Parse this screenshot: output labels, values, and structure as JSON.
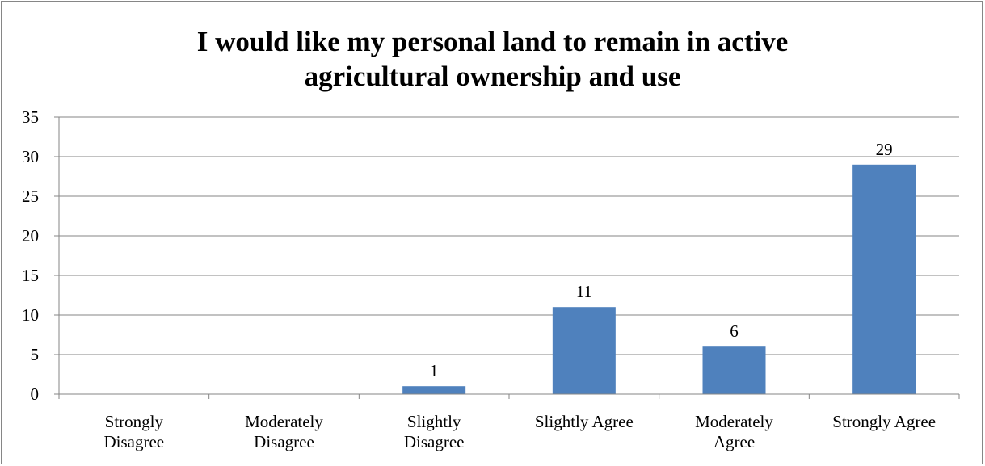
{
  "chart_data": {
    "type": "bar",
    "title": "I would like my personal land to remain in active\nagricultural ownership and use",
    "categories": [
      [
        "Strongly",
        "Disagree"
      ],
      [
        "Moderately",
        "Disagree"
      ],
      [
        "Slightly",
        "Disagree"
      ],
      [
        "Slightly Agree"
      ],
      [
        "Moderately",
        "Agree"
      ],
      [
        "Strongly Agree"
      ]
    ],
    "values": [
      0,
      0,
      1,
      11,
      6,
      29
    ],
    "data_labels": [
      "",
      "",
      "1",
      "11",
      "6",
      "29"
    ],
    "y_ticks": [
      "0",
      "5",
      "10",
      "15",
      "20",
      "25",
      "30",
      "35"
    ],
    "ylim": [
      0,
      35
    ],
    "grid": true,
    "legend": "none",
    "bar_color": "#4f81bd",
    "grid_color": "#868686"
  }
}
